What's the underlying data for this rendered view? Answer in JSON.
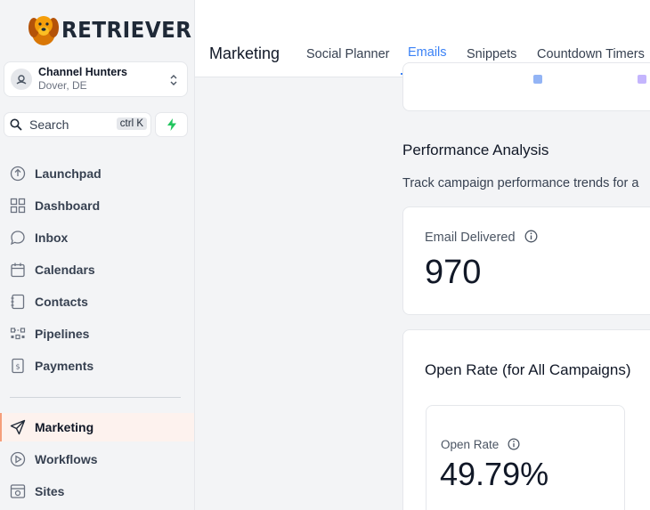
{
  "brand": {
    "name": "RETRIEVER"
  },
  "account": {
    "name": "Channel Hunters",
    "location": "Dover, DE"
  },
  "search": {
    "label": "Search",
    "shortcut": "ctrl K"
  },
  "nav": {
    "items": [
      {
        "label": "Launchpad",
        "icon": "rocket-icon"
      },
      {
        "label": "Dashboard",
        "icon": "grid-icon"
      },
      {
        "label": "Inbox",
        "icon": "chat-icon"
      },
      {
        "label": "Calendars",
        "icon": "calendar-icon"
      },
      {
        "label": "Contacts",
        "icon": "contacts-icon"
      },
      {
        "label": "Pipelines",
        "icon": "pipeline-icon"
      },
      {
        "label": "Payments",
        "icon": "payments-icon"
      },
      {
        "label": "Marketing",
        "icon": "send-icon"
      },
      {
        "label": "Workflows",
        "icon": "play-icon"
      },
      {
        "label": "Sites",
        "icon": "sites-icon"
      }
    ],
    "active": "Marketing"
  },
  "header": {
    "title": "Marketing",
    "tabs": [
      {
        "label": "Social Planner"
      },
      {
        "label": "Emails"
      },
      {
        "label": "Snippets"
      },
      {
        "label": "Countdown Timers"
      }
    ],
    "active_tab": "Emails"
  },
  "main": {
    "section_title": "Performance Analysis",
    "section_desc": "Track campaign performance trends for a",
    "email_delivered": {
      "label": "Email Delivered",
      "value": "970"
    },
    "open_rate_card": {
      "heading": "Open Rate (for All Campaigns)"
    },
    "open_rate": {
      "label": "Open Rate",
      "value": "49.79%"
    }
  },
  "colors": {
    "accent": "#3b82f6",
    "active_bg": "#fdf2ee",
    "bolt": "#22c55e"
  }
}
